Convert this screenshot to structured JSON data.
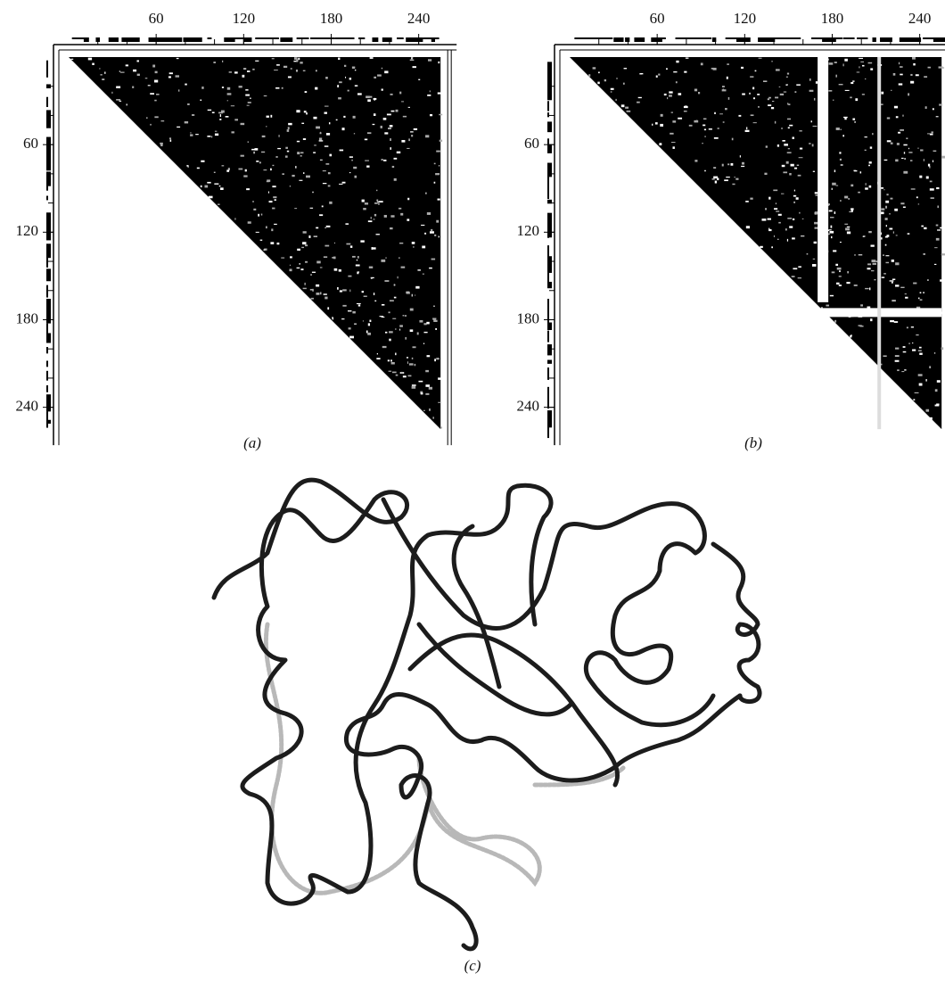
{
  "panels": [
    {
      "label": "(a)",
      "axis_range": [
        0,
        255
      ],
      "ticks": [
        60,
        120,
        180,
        240
      ]
    },
    {
      "label": "(b)",
      "axis_range": [
        0,
        255
      ],
      "ticks": [
        60,
        120,
        180,
        240
      ]
    },
    {
      "label": "(c)"
    }
  ]
}
